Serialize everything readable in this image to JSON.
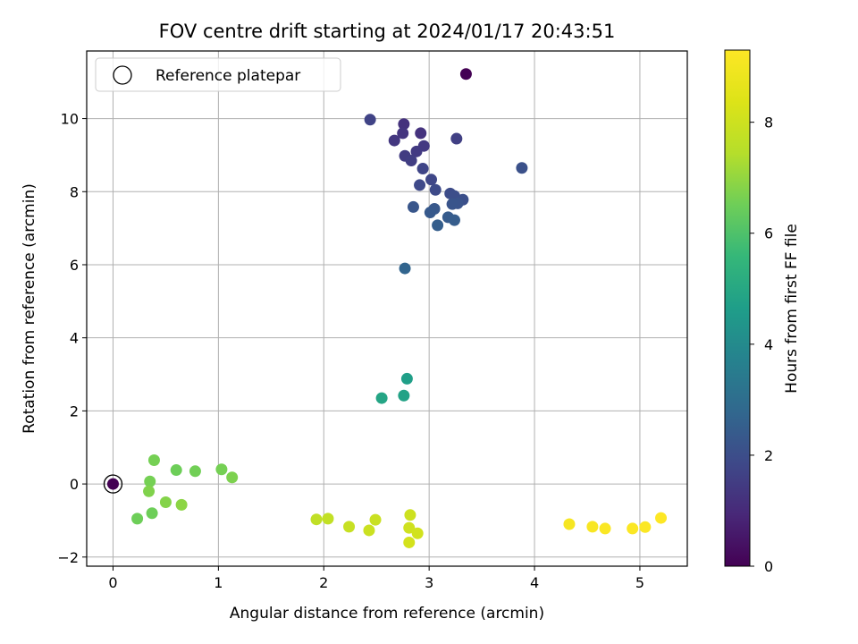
{
  "chart_data": {
    "type": "scatter",
    "title": "FOV centre drift starting at 2024/01/17 20:43:51",
    "xlabel": "Angular distance from reference (arcmin)",
    "ylabel": "Rotation from reference (arcmin)",
    "xlim": [
      -0.25,
      5.45
    ],
    "ylim": [
      -2.25,
      11.85
    ],
    "x_ticks": [
      0,
      1,
      2,
      3,
      4,
      5
    ],
    "y_ticks": [
      -2,
      0,
      2,
      4,
      6,
      8,
      10
    ],
    "grid": true,
    "legend": {
      "placement": "top-left",
      "entries": [
        "Reference platepar"
      ]
    },
    "reference_point": {
      "x": 0,
      "y": 0
    },
    "colormap": "viridis",
    "colorbar": {
      "label": "Hours from first FF file",
      "range": [
        0,
        9.3
      ],
      "ticks": [
        0,
        2,
        4,
        6,
        8
      ]
    },
    "points": [
      {
        "x": 0.0,
        "y": 0.0,
        "c": 0.0
      },
      {
        "x": 3.35,
        "y": 11.22,
        "c": 0.0
      },
      {
        "x": 2.76,
        "y": 9.85,
        "c": 1.2
      },
      {
        "x": 2.92,
        "y": 9.6,
        "c": 1.25
      },
      {
        "x": 2.75,
        "y": 9.6,
        "c": 1.3
      },
      {
        "x": 2.67,
        "y": 9.4,
        "c": 1.35
      },
      {
        "x": 2.95,
        "y": 9.25,
        "c": 1.4
      },
      {
        "x": 2.88,
        "y": 9.1,
        "c": 1.45
      },
      {
        "x": 2.77,
        "y": 8.98,
        "c": 1.5
      },
      {
        "x": 2.83,
        "y": 8.85,
        "c": 1.55
      },
      {
        "x": 3.26,
        "y": 9.45,
        "c": 1.6
      },
      {
        "x": 2.44,
        "y": 9.97,
        "c": 1.7
      },
      {
        "x": 2.94,
        "y": 8.63,
        "c": 1.75
      },
      {
        "x": 3.02,
        "y": 8.33,
        "c": 1.8
      },
      {
        "x": 2.91,
        "y": 8.18,
        "c": 1.85
      },
      {
        "x": 3.06,
        "y": 8.05,
        "c": 1.9
      },
      {
        "x": 3.2,
        "y": 7.95,
        "c": 1.95
      },
      {
        "x": 3.24,
        "y": 7.88,
        "c": 2.0
      },
      {
        "x": 3.32,
        "y": 7.78,
        "c": 2.05
      },
      {
        "x": 3.88,
        "y": 8.65,
        "c": 2.1
      },
      {
        "x": 3.27,
        "y": 7.68,
        "c": 2.15
      },
      {
        "x": 3.22,
        "y": 7.66,
        "c": 2.2
      },
      {
        "x": 2.85,
        "y": 7.58,
        "c": 2.25
      },
      {
        "x": 3.05,
        "y": 7.53,
        "c": 2.3
      },
      {
        "x": 3.01,
        "y": 7.43,
        "c": 2.35
      },
      {
        "x": 3.18,
        "y": 7.3,
        "c": 2.4
      },
      {
        "x": 3.24,
        "y": 7.22,
        "c": 2.45
      },
      {
        "x": 3.08,
        "y": 7.08,
        "c": 2.5
      },
      {
        "x": 2.77,
        "y": 5.9,
        "c": 2.7
      },
      {
        "x": 2.79,
        "y": 2.88,
        "c": 4.7
      },
      {
        "x": 2.76,
        "y": 2.42,
        "c": 4.8
      },
      {
        "x": 2.55,
        "y": 2.35,
        "c": 4.9
      },
      {
        "x": 0.39,
        "y": 0.65,
        "c": 6.6
      },
      {
        "x": 0.6,
        "y": 0.38,
        "c": 6.5
      },
      {
        "x": 0.78,
        "y": 0.35,
        "c": 6.55
      },
      {
        "x": 1.03,
        "y": 0.4,
        "c": 6.6
      },
      {
        "x": 1.13,
        "y": 0.18,
        "c": 6.7
      },
      {
        "x": 0.35,
        "y": 0.07,
        "c": 6.6
      },
      {
        "x": 0.34,
        "y": -0.2,
        "c": 6.75
      },
      {
        "x": 0.5,
        "y": -0.5,
        "c": 6.8
      },
      {
        "x": 0.65,
        "y": -0.57,
        "c": 6.9
      },
      {
        "x": 0.37,
        "y": -0.8,
        "c": 6.5
      },
      {
        "x": 0.23,
        "y": -0.95,
        "c": 6.5
      },
      {
        "x": 1.93,
        "y": -0.97,
        "c": 7.7
      },
      {
        "x": 2.04,
        "y": -0.95,
        "c": 7.75
      },
      {
        "x": 2.24,
        "y": -1.17,
        "c": 7.85
      },
      {
        "x": 2.49,
        "y": -0.98,
        "c": 7.9
      },
      {
        "x": 2.43,
        "y": -1.27,
        "c": 7.95
      },
      {
        "x": 2.82,
        "y": -0.85,
        "c": 8.0
      },
      {
        "x": 2.81,
        "y": -1.2,
        "c": 8.05
      },
      {
        "x": 2.89,
        "y": -1.35,
        "c": 8.1
      },
      {
        "x": 2.81,
        "y": -1.6,
        "c": 8.15
      },
      {
        "x": 4.33,
        "y": -1.1,
        "c": 9.1
      },
      {
        "x": 4.55,
        "y": -1.17,
        "c": 9.15
      },
      {
        "x": 4.67,
        "y": -1.22,
        "c": 9.2
      },
      {
        "x": 4.93,
        "y": -1.22,
        "c": 9.25
      },
      {
        "x": 5.05,
        "y": -1.18,
        "c": 9.25
      },
      {
        "x": 5.2,
        "y": -0.93,
        "c": 9.3
      }
    ]
  }
}
